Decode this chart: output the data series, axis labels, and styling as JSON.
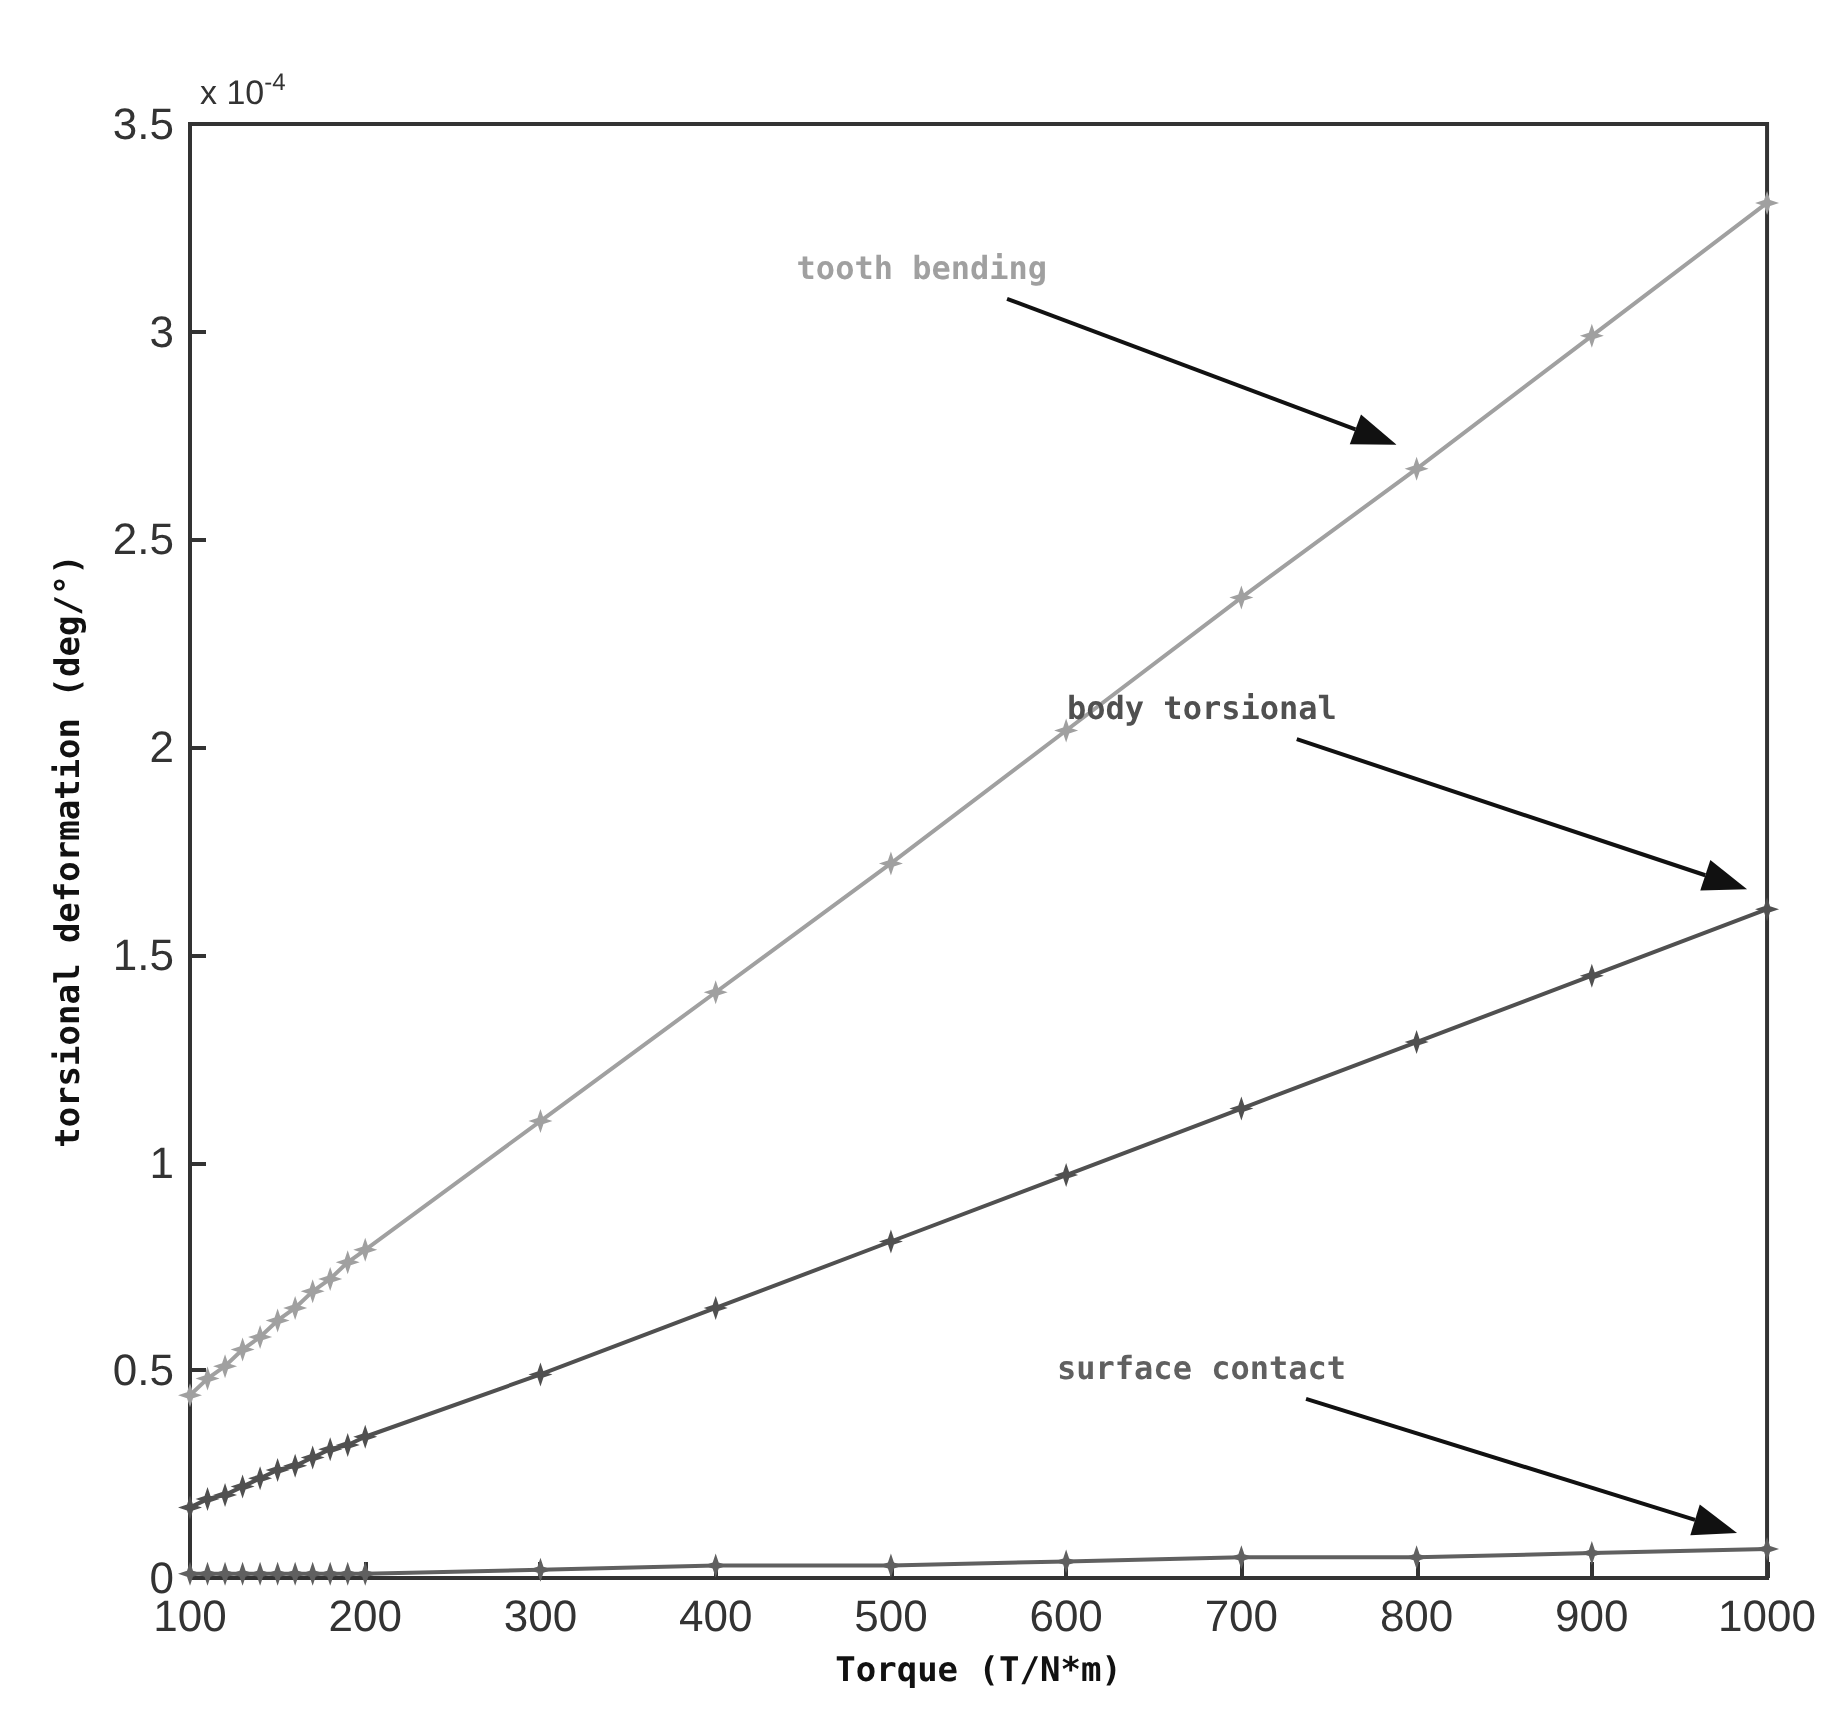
{
  "chart_data": {
    "type": "line",
    "xlabel": "Torque (T/N*m)",
    "ylabel": "torsional deformation (deg/°)",
    "annotations": [
      "x 10$^{-4}$"
    ],
    "x": [
      100,
      110,
      120,
      130,
      140,
      150,
      160,
      170,
      180,
      190,
      200,
      300,
      400,
      500,
      600,
      700,
      800,
      900,
      1000
    ],
    "series": [
      {
        "name": "tooth bending",
        "color": "#a0a0a0",
        "values": [
          0.44,
          0.48,
          0.51,
          0.55,
          0.58,
          0.62,
          0.65,
          0.69,
          0.72,
          0.76,
          0.79,
          1.1,
          1.41,
          1.72,
          2.04,
          2.36,
          2.67,
          2.99,
          3.31
        ]
      },
      {
        "name": "body torsional",
        "color": "#505050",
        "values": [
          0.17,
          0.19,
          0.2,
          0.22,
          0.24,
          0.26,
          0.27,
          0.29,
          0.31,
          0.32,
          0.34,
          0.49,
          0.65,
          0.81,
          0.97,
          1.13,
          1.29,
          1.45,
          1.61
        ]
      },
      {
        "name": "surface contact",
        "color": "#606060",
        "values": [
          0.01,
          0.01,
          0.01,
          0.01,
          0.01,
          0.01,
          0.01,
          0.01,
          0.01,
          0.01,
          0.01,
          0.02,
          0.03,
          0.03,
          0.04,
          0.05,
          0.05,
          0.06,
          0.07
        ]
      }
    ],
    "xlim": [
      100,
      1000
    ],
    "xticks": [
      100,
      200,
      300,
      400,
      500,
      600,
      700,
      800,
      900,
      1000
    ],
    "ylim": [
      0,
      3.5
    ],
    "yticks": [
      0,
      0.5,
      1,
      1.5,
      2,
      2.5,
      3,
      3.5
    ],
    "grid": false,
    "legend": false,
    "marker": "star",
    "line_style": "solid"
  }
}
